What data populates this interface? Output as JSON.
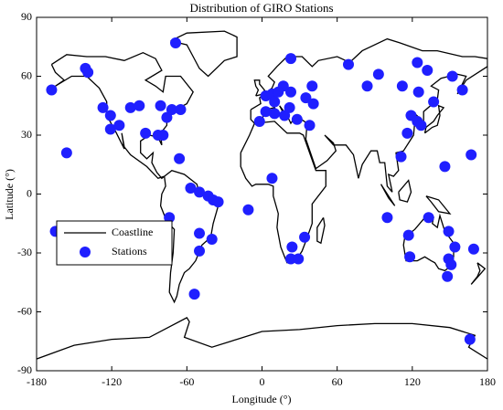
{
  "chart_data": {
    "type": "scatter",
    "title": "Distribution of GIRO Stations",
    "x_label": "Longitude (°)",
    "y_label": "Latitude (°)",
    "xlim": [
      -180,
      180
    ],
    "ylim": [
      -90,
      90
    ],
    "xticks": [
      -180,
      -120,
      -60,
      0,
      60,
      120,
      180
    ],
    "yticks": [
      -90,
      -60,
      -30,
      0,
      30,
      60,
      90
    ],
    "legend": "southwest",
    "series": [
      {
        "name": "Coastline",
        "type": "line",
        "color": "#000000",
        "x": [
          -168,
          -156,
          -140,
          -125,
          -110,
          -95,
          -85,
          -80,
          -93,
          -85,
          -79,
          -77,
          -65,
          -55,
          -60,
          -66,
          -70,
          -76,
          -76,
          -81,
          -80,
          -83,
          -90,
          -97,
          -97,
          -92,
          -87,
          -88,
          -84,
          -80,
          -78,
          -83,
          -92,
          -105,
          -110,
          -112,
          -110,
          -117,
          -124,
          -124,
          -130,
          -140,
          -152,
          -165,
          -158,
          -165,
          -168,
          null,
          -78,
          -72,
          -62,
          -52,
          -50,
          -40,
          -35,
          -39,
          -41,
          -48,
          -53,
          -58,
          -62,
          -66,
          -68,
          -70,
          -74,
          -73,
          -71,
          -70,
          -76,
          -81,
          -80,
          -77,
          -78,
          null,
          -73,
          -60,
          -30,
          -20,
          -20,
          -30,
          -43,
          -50,
          -55,
          -60,
          -73,
          null,
          -17,
          -10,
          -6,
          10,
          20,
          30,
          33,
          43,
          51,
          51,
          40,
          40,
          35,
          32,
          27,
          20,
          18,
          15,
          12,
          13,
          9,
          9,
          5,
          -5,
          -8,
          -13,
          -17,
          -17,
          null,
          -9,
          -9,
          -6,
          0,
          3,
          10,
          16,
          18,
          14,
          20,
          23,
          27,
          36,
          35,
          43,
          52,
          59,
          57,
          50,
          57,
          67,
          73,
          77,
          80,
          87,
          92,
          94,
          98,
          100,
          104,
          101,
          105,
          109,
          107,
          113,
          121,
          122,
          118,
          122,
          127,
          129,
          129,
          140,
          141,
          135,
          143,
          156,
          163,
          156,
          163,
          180,
          180,
          170,
          160,
          140,
          128,
          110,
          100,
          80,
          70,
          60,
          45,
          40,
          32,
          20,
          12,
          5,
          10,
          8,
          4,
          -2,
          -1,
          -9,
          null,
          -5,
          1,
          2,
          -2,
          -2,
          -6,
          -5,
          -3,
          -5,
          null,
          130,
          136,
          140,
          142,
          141,
          145,
          140,
          137,
          131,
          130,
          null,
          114,
          122,
          130,
          137,
          136,
          140,
          142,
          146,
          153,
          153,
          150,
          146,
          141,
          138,
          135,
          130,
          124,
          115,
          113,
          114,
          null,
          95,
          106,
          101,
          95,
          null,
          109,
          117,
          119,
          116,
          110,
          109,
          null,
          131,
          141,
          150,
          141,
          135,
          131,
          null,
          172,
          178,
          174,
          167,
          172,
          174,
          172,
          null,
          49,
          50,
          47,
          44,
          44,
          49,
          null,
          -180,
          -150,
          -120,
          -90,
          -60,
          -58,
          -62,
          -40,
          -20,
          0,
          30,
          60,
          90,
          120,
          150,
          170,
          165,
          180
        ],
        "y": [
          66,
          71,
          70,
          70,
          68,
          72,
          69,
          63,
          58,
          55,
          52,
          60,
          60,
          52,
          46,
          44,
          42,
          38,
          35,
          31,
          25,
          29,
          30,
          27,
          21,
          18,
          21,
          16,
          11,
          8,
          9,
          8,
          14,
          20,
          24,
          31,
          23,
          32,
          40,
          47,
          54,
          60,
          60,
          55,
          58,
          62,
          66,
          null,
          9,
          12,
          10,
          5,
          0,
          -3,
          -6,
          -15,
          -22,
          -26,
          -34,
          -38,
          -40,
          -46,
          -52,
          -55,
          -50,
          -40,
          -30,
          -18,
          -14,
          -6,
          0,
          4,
          9,
          null,
          78,
          82,
          83,
          80,
          70,
          68,
          60,
          64,
          70,
          76,
          78,
          null,
          21,
          30,
          36,
          37,
          31,
          31,
          30,
          12,
          12,
          4,
          -5,
          -15,
          -24,
          -29,
          -34,
          -35,
          -32,
          -27,
          -17,
          -10,
          -1,
          4,
          5,
          5,
          4,
          8,
          14,
          21,
          null,
          43,
          38,
          36,
          38,
          43,
          44,
          38,
          40,
          45,
          40,
          36,
          40,
          36,
          28,
          13,
          17,
          22,
          26,
          30,
          25,
          25,
          20,
          8,
          15,
          22,
          22,
          16,
          16,
          4,
          1,
          10,
          9,
          12,
          21,
          22,
          30,
          37,
          39,
          41,
          38,
          35,
          42,
          48,
          53,
          55,
          59,
          61,
          60,
          51,
          58,
          65,
          69,
          70,
          70,
          73,
          73,
          77,
          79,
          73,
          67,
          70,
          68,
          65,
          70,
          70,
          65,
          60,
          57,
          54,
          52,
          49,
          46,
          43,
          null,
          50,
          51,
          53,
          56,
          58,
          58,
          55,
          53,
          50,
          null,
          31,
          34,
          35,
          40,
          45,
          44,
          40,
          37,
          34,
          31,
          null,
          -22,
          -18,
          -12,
          -12,
          -15,
          -17,
          -11,
          -19,
          -25,
          -32,
          -37,
          -39,
          -38,
          -35,
          -34,
          -32,
          -34,
          -34,
          -26,
          -22,
          null,
          5,
          -6,
          -2,
          5,
          null,
          1,
          7,
          1,
          -4,
          -3,
          1,
          null,
          -1,
          -3,
          -10,
          -9,
          -4,
          -1,
          null,
          -35,
          -38,
          -41,
          -46,
          -42,
          -39,
          -35,
          null,
          -12,
          -16,
          -25,
          -24,
          -17,
          -12,
          null,
          -84,
          -77,
          -74,
          -73,
          -63,
          -65,
          -73,
          -78,
          -74,
          -70,
          -69,
          -67,
          -66,
          -66,
          -68,
          -72,
          -78,
          -84
        ]
      },
      {
        "name": "Stations",
        "type": "scatter",
        "color": "#1f1fff",
        "x": [
          -168,
          -141,
          -139,
          -156,
          -165,
          -127,
          -121,
          -121,
          -114,
          -105,
          -93,
          -83,
          -79,
          -76,
          -72,
          -98,
          -81,
          -65,
          -66,
          -69,
          -57,
          -50,
          -43,
          -39,
          -35,
          -74,
          -50,
          -40,
          -50,
          -54,
          -11,
          8,
          24,
          23,
          29,
          34,
          3,
          8,
          10,
          23,
          17,
          23,
          18,
          10,
          3,
          -2,
          22,
          28,
          35,
          40,
          41,
          38,
          13,
          69,
          93,
          84,
          112,
          124,
          132,
          152,
          160,
          125,
          137,
          119,
          124,
          127,
          116,
          111,
          146,
          167,
          100,
          133,
          149,
          117,
          118,
          154,
          149,
          151,
          148,
          169,
          166
        ],
        "y": [
          53,
          64,
          62,
          21,
          -19,
          44,
          40,
          33,
          35,
          44,
          31,
          30,
          30,
          39,
          43,
          45,
          45,
          43,
          18,
          77,
          3,
          1,
          -1,
          -3,
          -4,
          -12,
          -20,
          -23,
          -29,
          -51,
          -8,
          8,
          -27,
          -33,
          -33,
          -22,
          50,
          51,
          47,
          52,
          55,
          69,
          40,
          41,
          42,
          37,
          44,
          38,
          49,
          55,
          46,
          35,
          52,
          66,
          61,
          55,
          55,
          67,
          63,
          60,
          53,
          52,
          47,
          40,
          37,
          35,
          31,
          19,
          14,
          20,
          -12,
          -12,
          -19,
          -21,
          -32,
          -27,
          -33,
          -36,
          -42,
          -28,
          -74
        ]
      }
    ]
  }
}
